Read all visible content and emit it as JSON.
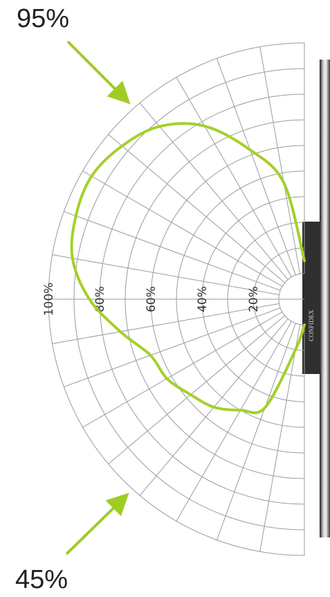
{
  "colors": {
    "grid": "#9a9a9a",
    "curve": "#a4d02a",
    "arrow": "#9fcc24",
    "label": "#333333",
    "sensor_body": "#2f2f2f",
    "sensor_label": "#d8d8d8"
  },
  "callouts": {
    "top": "95%",
    "bottom": "45%"
  },
  "sensor_label": "CONFIDEX",
  "chart_data": {
    "type": "polar",
    "title": "",
    "radial_unit": "%",
    "radial_ticks": [
      20,
      40,
      60,
      80,
      100
    ],
    "radial_tick_labels": [
      "20%",
      "40%",
      "60%",
      "80%",
      "100%"
    ],
    "angle_range_deg": [
      -90,
      90
    ],
    "angle_step_deg": 10,
    "grid": true,
    "series": [
      {
        "angle_deg": [
          90,
          80,
          70,
          60,
          50,
          40,
          30,
          20,
          10,
          0,
          -10,
          -20,
          -30,
          -40,
          -50,
          -60,
          -70,
          -80,
          -90
        ],
        "value_pct": [
          15,
          46,
          62,
          78,
          88,
          93,
          96,
          95,
          92,
          84,
          73,
          64,
          62,
          58,
          55,
          50,
          45,
          20,
          10
        ]
      }
    ]
  }
}
